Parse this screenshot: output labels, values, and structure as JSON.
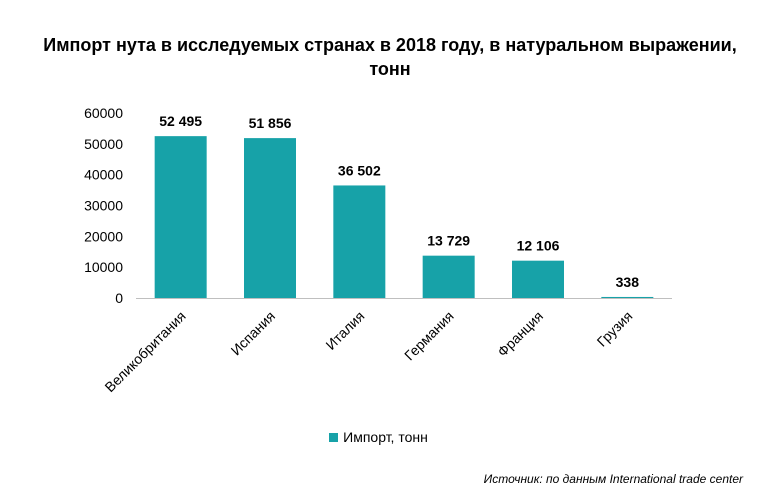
{
  "chart_data": {
    "type": "bar",
    "title": "Импорт нута в исследуемых странах в 2018 году, в натуральном выражении, тонн",
    "categories": [
      "Великобритания",
      "Испания",
      "Италия",
      "Германия",
      "Франция",
      "Грузия"
    ],
    "series": [
      {
        "name": "Импорт, тонн",
        "values": [
          52495,
          51856,
          36502,
          13729,
          12106,
          338
        ],
        "labels": [
          "52 495",
          "51 856",
          "36 502",
          "13 729",
          "12 106",
          "338"
        ]
      }
    ],
    "ylim": [
      0,
      60000
    ],
    "yticks": [
      "0",
      "10000",
      "20000",
      "30000",
      "40000",
      "50000",
      "60000"
    ],
    "grid": false,
    "legend_position": "bottom",
    "bar_color": "#17a2a8"
  },
  "source_note": "Источник: по данным International trade center"
}
